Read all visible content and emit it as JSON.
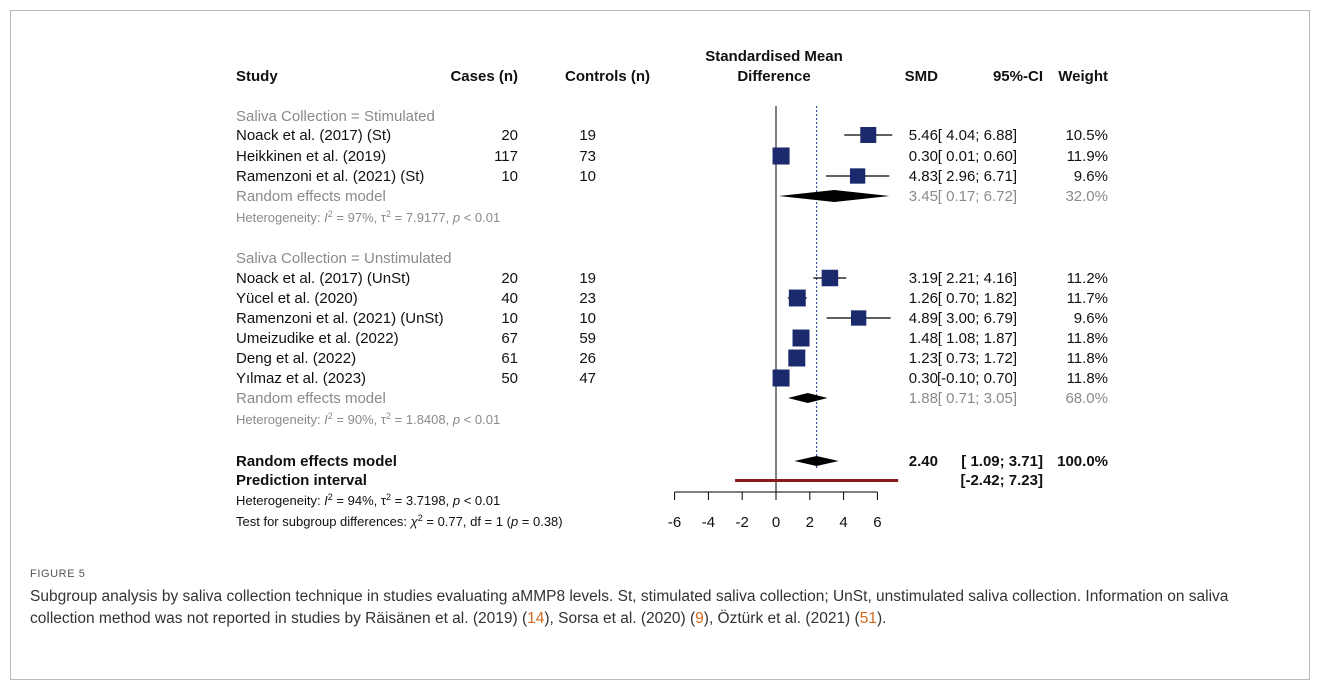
{
  "figure": {
    "label": "FIGURE 5",
    "caption_parts": [
      {
        "t": "Subgroup analysis by saliva collection technique in studies evaluating aMMP8 levels. St, stimulated saliva collection; UnSt, unstimulated saliva collection. Information on saliva collection method was not reported in studies by Räisänen et al. (2019) (",
        "ref": false
      },
      {
        "t": "14",
        "ref": true
      },
      {
        "t": "), Sorsa et al. (2020) (",
        "ref": false
      },
      {
        "t": "9",
        "ref": true
      },
      {
        "t": "), Öztürk et al. (2021) (",
        "ref": false
      },
      {
        "t": "51",
        "ref": true
      },
      {
        "t": ").",
        "ref": false
      }
    ]
  },
  "chart_data": {
    "type": "forest",
    "headers": {
      "study": "Study",
      "cases": "Cases (n)",
      "controls": "Controls (n)",
      "effect_line1": "Standardised Mean",
      "effect_line2": "Difference",
      "smd": "SMD",
      "ci": "95%-CI",
      "weight": "Weight"
    },
    "xlim": [
      -6,
      6
    ],
    "x_ticks": [
      -6,
      -4,
      -2,
      0,
      2,
      4,
      6
    ],
    "null_line": 0,
    "overall_line": 2.4,
    "subgroups": [
      {
        "title": "Saliva Collection = Stimulated",
        "studies": [
          {
            "name": "Noack et al. (2017) (St)",
            "cases": "20",
            "controls": "19",
            "smd": 5.46,
            "lo": 4.04,
            "hi": 6.88,
            "smd_text": "5.46",
            "ci_text": "[ 4.04; 6.88]",
            "weight_text": "10.5%",
            "weight": 10.5
          },
          {
            "name": "Heikkinen et al. (2019)",
            "cases": "117",
            "controls": "73",
            "smd": 0.3,
            "lo": 0.01,
            "hi": 0.6,
            "smd_text": "0.30",
            "ci_text": "[ 0.01; 0.60]",
            "weight_text": "11.9%",
            "weight": 11.9
          },
          {
            "name": "Ramenzoni et al. (2021) (St)",
            "cases": "10",
            "controls": "10",
            "smd": 4.83,
            "lo": 2.96,
            "hi": 6.71,
            "smd_text": "4.83",
            "ci_text": "[ 2.96; 6.71]",
            "weight_text": "9.6%",
            "weight": 9.6
          }
        ],
        "model": {
          "label": "Random effects model",
          "smd": 3.45,
          "lo": 0.17,
          "hi": 6.72,
          "smd_text": "3.45",
          "ci_text": "[ 0.17; 6.72]",
          "weight_text": "32.0%"
        },
        "heterogeneity": {
          "prefix": "Heterogeneity: ",
          "i2": "97%",
          "tau2": "7.9177",
          "p": "< 0.01"
        }
      },
      {
        "title": "Saliva Collection = Unstimulated",
        "studies": [
          {
            "name": "Noack et al. (2017) (UnSt)",
            "cases": "20",
            "controls": "19",
            "smd": 3.19,
            "lo": 2.21,
            "hi": 4.16,
            "smd_text": "3.19",
            "ci_text": "[ 2.21; 4.16]",
            "weight_text": "11.2%",
            "weight": 11.2
          },
          {
            "name": "Yücel et al. (2020)",
            "cases": "40",
            "controls": "23",
            "smd": 1.26,
            "lo": 0.7,
            "hi": 1.82,
            "smd_text": "1.26",
            "ci_text": "[ 0.70; 1.82]",
            "weight_text": "11.7%",
            "weight": 11.7
          },
          {
            "name": "Ramenzoni et al. (2021) (UnSt)",
            "cases": "10",
            "controls": "10",
            "smd": 4.89,
            "lo": 3.0,
            "hi": 6.79,
            "smd_text": "4.89",
            "ci_text": "[ 3.00; 6.79]",
            "weight_text": "9.6%",
            "weight": 9.6
          },
          {
            "name": "Umeizudike et al. (2022)",
            "cases": "67",
            "controls": "59",
            "smd": 1.48,
            "lo": 1.08,
            "hi": 1.87,
            "smd_text": "1.48",
            "ci_text": "[ 1.08; 1.87]",
            "weight_text": "11.8%",
            "weight": 11.8
          },
          {
            "name": "Deng et al. (2022)",
            "cases": "61",
            "controls": "26",
            "smd": 1.23,
            "lo": 0.73,
            "hi": 1.72,
            "smd_text": "1.23",
            "ci_text": "[ 0.73; 1.72]",
            "weight_text": "11.8%",
            "weight": 11.8
          },
          {
            "name": "Yılmaz et al. (2023)",
            "cases": "50",
            "controls": "47",
            "smd": 0.3,
            "lo": -0.1,
            "hi": 0.7,
            "smd_text": "0.30",
            "ci_text": "[-0.10; 0.70]",
            "weight_text": "11.8%",
            "weight": 11.8
          }
        ],
        "model": {
          "label": "Random effects model",
          "smd": 1.88,
          "lo": 0.71,
          "hi": 3.05,
          "smd_text": "1.88",
          "ci_text": "[ 0.71; 3.05]",
          "weight_text": "68.0%"
        },
        "heterogeneity": {
          "prefix": "Heterogeneity: ",
          "i2": "90%",
          "tau2": "1.8408",
          "p": "< 0.01"
        }
      }
    ],
    "overall": {
      "label": "Random effects model",
      "smd": 2.4,
      "lo": 1.09,
      "hi": 3.71,
      "smd_text": "2.40",
      "ci_text": "[ 1.09; 3.71]",
      "weight_text": "100.0%"
    },
    "prediction": {
      "label": "Prediction interval",
      "lo": -2.42,
      "hi": 7.23,
      "ci_text": "[-2.42; 7.23]"
    },
    "overall_heterogeneity": {
      "prefix": "Heterogeneity: ",
      "i2": "94%",
      "tau2": "3.7198",
      "p": "< 0.01"
    },
    "subgroup_test": {
      "prefix": "Test for subgroup differences: ",
      "chi2": "0.77",
      "df": "df = 1",
      "p": "0.38"
    },
    "colors": {
      "square": "#1a2a6c",
      "diamond": "#000000",
      "prediction": "#8b1a1a",
      "overall_line": "#3b4fa0",
      "subgroup_text": "#8a8a8a"
    }
  }
}
